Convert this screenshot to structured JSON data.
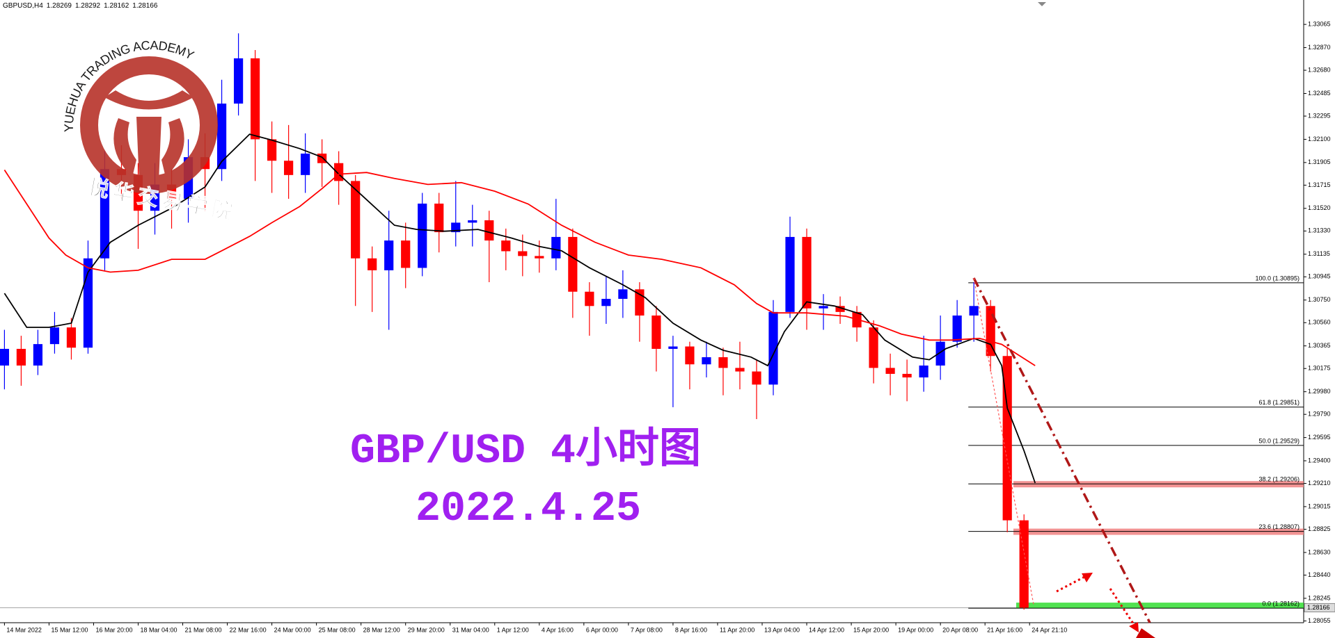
{
  "header": {
    "symbol": "GBPUSD,H4",
    "ohlc": [
      1.28269,
      1.28292,
      1.28162,
      1.28166
    ]
  },
  "watermark": {
    "arc_text": "YUEHUA TRADING ACADEMY",
    "cn_text": "悦华交易学院"
  },
  "chart_data": {
    "type": "candlestick",
    "title": "GBP/USD 4小时图",
    "subtitle": "2022.4.25",
    "x": [
      0,
      3,
      6,
      9,
      12,
      15,
      18,
      21,
      24,
      27,
      30,
      33,
      36,
      39,
      42,
      45,
      48,
      51,
      54,
      57,
      60,
      63,
      66,
      69,
      72,
      75,
      78,
      81,
      84,
      87,
      90,
      93,
      96,
      99,
      102,
      105,
      108,
      111,
      114,
      117,
      120,
      123,
      126,
      129,
      132,
      135,
      138,
      141,
      144,
      147,
      150,
      153,
      156,
      159,
      162,
      165,
      168,
      171,
      174,
      177,
      180,
      183
    ],
    "open": [
      1.302,
      1.3034,
      1.302,
      1.3038,
      1.3052,
      1.3035,
      1.311,
      1.3185,
      1.318,
      1.315,
      1.3172,
      1.316,
      1.3195,
      1.3185,
      1.324,
      1.3278,
      1.321,
      1.3192,
      1.318,
      1.3198,
      1.319,
      1.3175,
      1.311,
      1.31,
      1.3125,
      1.3102,
      1.3156,
      1.3132,
      1.314,
      1.3142,
      1.3125,
      1.3116,
      1.3112,
      1.311,
      1.3128,
      1.3082,
      1.307,
      1.3076,
      1.3084,
      1.3062,
      1.3034,
      1.3036,
      1.3021,
      1.3027,
      1.3018,
      1.3015,
      1.3004,
      1.3065,
      1.3128,
      1.3068,
      1.307,
      1.3065,
      1.3052,
      1.3018,
      1.3013,
      1.301,
      1.302,
      1.304,
      1.3062,
      1.307,
      1.3028,
      1.289
    ],
    "high": [
      1.305,
      1.3045,
      1.305,
      1.3065,
      1.306,
      1.3125,
      1.32,
      1.3205,
      1.319,
      1.319,
      1.3185,
      1.321,
      1.3215,
      1.326,
      1.3299,
      1.3285,
      1.3225,
      1.3222,
      1.3215,
      1.321,
      1.32,
      1.318,
      1.312,
      1.315,
      1.314,
      1.3165,
      1.3165,
      1.3175,
      1.3155,
      1.315,
      1.3135,
      1.313,
      1.3125,
      1.316,
      1.3135,
      1.309,
      1.3095,
      1.31,
      1.309,
      1.307,
      1.3045,
      1.304,
      1.304,
      1.3035,
      1.304,
      1.3025,
      1.3075,
      1.3145,
      1.3135,
      1.308,
      1.3078,
      1.307,
      1.3058,
      1.303,
      1.3025,
      1.3045,
      1.3062,
      1.3075,
      1.309,
      1.3075,
      1.3035,
      1.2895
    ],
    "low": [
      1.3,
      1.3003,
      1.3012,
      1.303,
      1.3025,
      1.303,
      1.31,
      1.316,
      1.3118,
      1.313,
      1.3135,
      1.314,
      1.315,
      1.3175,
      1.323,
      1.3175,
      1.3165,
      1.316,
      1.3165,
      1.317,
      1.3155,
      1.307,
      1.3065,
      1.305,
      1.3085,
      1.3095,
      1.3115,
      1.312,
      1.312,
      1.309,
      1.31,
      1.3095,
      1.3098,
      1.31,
      1.306,
      1.3045,
      1.3055,
      1.306,
      1.304,
      1.3015,
      1.2985,
      1.3,
      1.301,
      1.2995,
      1.3,
      1.2975,
      1.2995,
      1.306,
      1.305,
      1.305,
      1.3055,
      1.304,
      1.3005,
      1.2995,
      1.299,
      1.2998,
      1.3008,
      1.3035,
      1.304,
      1.3015,
      1.288,
      1.2815
    ],
    "close": [
      1.3034,
      1.302,
      1.3038,
      1.3052,
      1.3035,
      1.311,
      1.3185,
      1.318,
      1.315,
      1.3172,
      1.316,
      1.3195,
      1.3185,
      1.324,
      1.3278,
      1.321,
      1.3192,
      1.318,
      1.3198,
      1.319,
      1.3175,
      1.311,
      1.31,
      1.3125,
      1.3102,
      1.3156,
      1.3132,
      1.314,
      1.3142,
      1.3125,
      1.3116,
      1.3112,
      1.311,
      1.3128,
      1.3082,
      1.307,
      1.3076,
      1.3084,
      1.3062,
      1.3034,
      1.3036,
      1.3021,
      1.3027,
      1.3018,
      1.3015,
      1.3004,
      1.3065,
      1.3128,
      1.3068,
      1.307,
      1.3065,
      1.3052,
      1.3018,
      1.3013,
      1.301,
      1.302,
      1.304,
      1.3062,
      1.307,
      1.3028,
      1.289,
      1.28166
    ],
    "up_color": "#0000ff",
    "down_color": "#ff0000",
    "lines": [
      {
        "color": "#000000",
        "x": [
          0,
          4,
          8,
          12,
          15,
          19,
          24,
          30,
          36,
          39,
          44,
          48,
          53,
          57,
          60,
          65,
          70,
          74,
          79,
          85,
          91,
          96,
          100,
          105,
          111,
          115,
          120,
          125,
          129,
          134,
          137,
          140,
          144,
          149,
          154,
          158,
          163,
          166,
          169,
          174,
          177,
          179,
          180,
          183,
          185
        ],
        "values": [
          1.30807,
          1.30521,
          1.30521,
          1.30556,
          1.30985,
          1.31235,
          1.31378,
          1.31521,
          1.317,
          1.31914,
          1.32143,
          1.32093,
          1.32022,
          1.3195,
          1.31807,
          1.31593,
          1.31378,
          1.31343,
          1.31328,
          1.31343,
          1.31271,
          1.312,
          1.31164,
          1.31021,
          1.30878,
          1.30771,
          1.30556,
          1.30414,
          1.30328,
          1.30271,
          1.30199,
          1.30485,
          1.30735,
          1.307,
          1.30628,
          1.30414,
          1.30271,
          1.30249,
          1.30342,
          1.30428,
          1.30378,
          1.30199,
          1.29842,
          1.29484,
          1.29213
        ]
      },
      {
        "color": "#ff0000",
        "x": [
          0,
          4,
          8,
          11,
          15,
          19,
          24,
          30,
          36,
          39,
          44,
          48,
          53,
          57,
          60,
          65,
          70,
          76,
          82,
          88,
          94,
          100,
          106,
          112,
          118,
          125,
          131,
          135,
          138,
          144,
          151,
          157,
          161,
          166,
          170,
          175,
          179,
          185
        ],
        "values": [
          1.31843,
          1.31557,
          1.31271,
          1.31128,
          1.31021,
          1.30985,
          1.31,
          1.31092,
          1.31092,
          1.31164,
          1.31285,
          1.314,
          1.31536,
          1.31686,
          1.31807,
          1.31821,
          1.31771,
          1.31721,
          1.31736,
          1.31664,
          1.31557,
          1.31378,
          1.31235,
          1.31128,
          1.31092,
          1.31021,
          1.30878,
          1.30721,
          1.30642,
          1.30642,
          1.30614,
          1.30535,
          1.30464,
          1.30414,
          1.30414,
          1.30428,
          1.30378,
          1.30199
        ]
      }
    ],
    "xlim": [
      -0.8,
      233.2
    ],
    "xticks": [
      {
        "value": 0,
        "label": "14 Mar 2022"
      },
      {
        "value": 8,
        "label": "15 Mar 12:00"
      },
      {
        "value": 16,
        "label": "16 Mar 20:00"
      },
      {
        "value": 24,
        "label": "18 Mar 04:00"
      },
      {
        "value": 32,
        "label": "21 Mar 08:00"
      },
      {
        "value": 40,
        "label": "22 Mar 16:00"
      },
      {
        "value": 48,
        "label": "24 Mar 00:00"
      },
      {
        "value": 56,
        "label": "25 Mar 08:00"
      },
      {
        "value": 64,
        "label": "28 Mar 12:00"
      },
      {
        "value": 72,
        "label": "29 Mar 20:00"
      },
      {
        "value": 80,
        "label": "31 Mar 04:00"
      },
      {
        "value": 88,
        "label": "1 Apr 12:00"
      },
      {
        "value": 96,
        "label": "4 Apr 16:00"
      },
      {
        "value": 104,
        "label": "6 Apr 00:00"
      },
      {
        "value": 112,
        "label": "7 Apr 08:00"
      },
      {
        "value": 120,
        "label": "8 Apr 16:00"
      },
      {
        "value": 128,
        "label": "11 Apr 20:00"
      },
      {
        "value": 136,
        "label": "13 Apr 04:00"
      },
      {
        "value": 144,
        "label": "14 Apr 12:00"
      },
      {
        "value": 152,
        "label": "15 Apr 20:00"
      },
      {
        "value": 160,
        "label": "19 Apr 00:00"
      },
      {
        "value": 168,
        "label": "20 Apr 08:00"
      },
      {
        "value": 176,
        "label": "21 Apr 16:00"
      },
      {
        "value": 184,
        "label": "24 Apr 21:10"
      }
    ],
    "ylim": [
      1.2804,
      1.3327
    ],
    "yticks": [
      1.33065,
      {
        "value": 1.3287,
        "label": "1.32870"
      },
      {
        "value": 1.3268,
        "label": "1.32680"
      },
      1.32485,
      1.32295,
      {
        "value": 1.321,
        "label": "1.32100"
      },
      1.31905,
      1.31715,
      {
        "value": 1.3152,
        "label": "1.31520"
      },
      {
        "value": 1.3133,
        "label": "1.31330"
      },
      1.31135,
      1.30945,
      {
        "value": 1.3075,
        "label": "1.30750"
      },
      {
        "value": 1.3056,
        "label": "1.30560"
      },
      1.30365,
      1.30175,
      {
        "value": 1.2998,
        "label": "1.29980"
      },
      {
        "value": 1.2979,
        "label": "1.29790"
      },
      1.29595,
      {
        "value": 1.294,
        "label": "1.29400"
      },
      {
        "value": 1.2921,
        "label": "1.29210"
      },
      1.29015,
      1.28825,
      {
        "value": 1.2863,
        "label": "1.28630"
      },
      {
        "value": 1.2844,
        "label": "1.28440"
      },
      1.28245,
      1.28055
    ],
    "fib": {
      "levels": [
        1.30895,
        1.29851,
        1.29529,
        1.29206,
        1.28807,
        1.28162
      ],
      "labels": [
        "100.0 (1.30895)",
        "61.8 (1.29851)",
        "50.0 (1.29529)",
        "38.2 (1.29206)",
        "23.6 (1.28807)",
        "0.0 (1.28162)"
      ]
    },
    "last_price": 1.28166
  }
}
